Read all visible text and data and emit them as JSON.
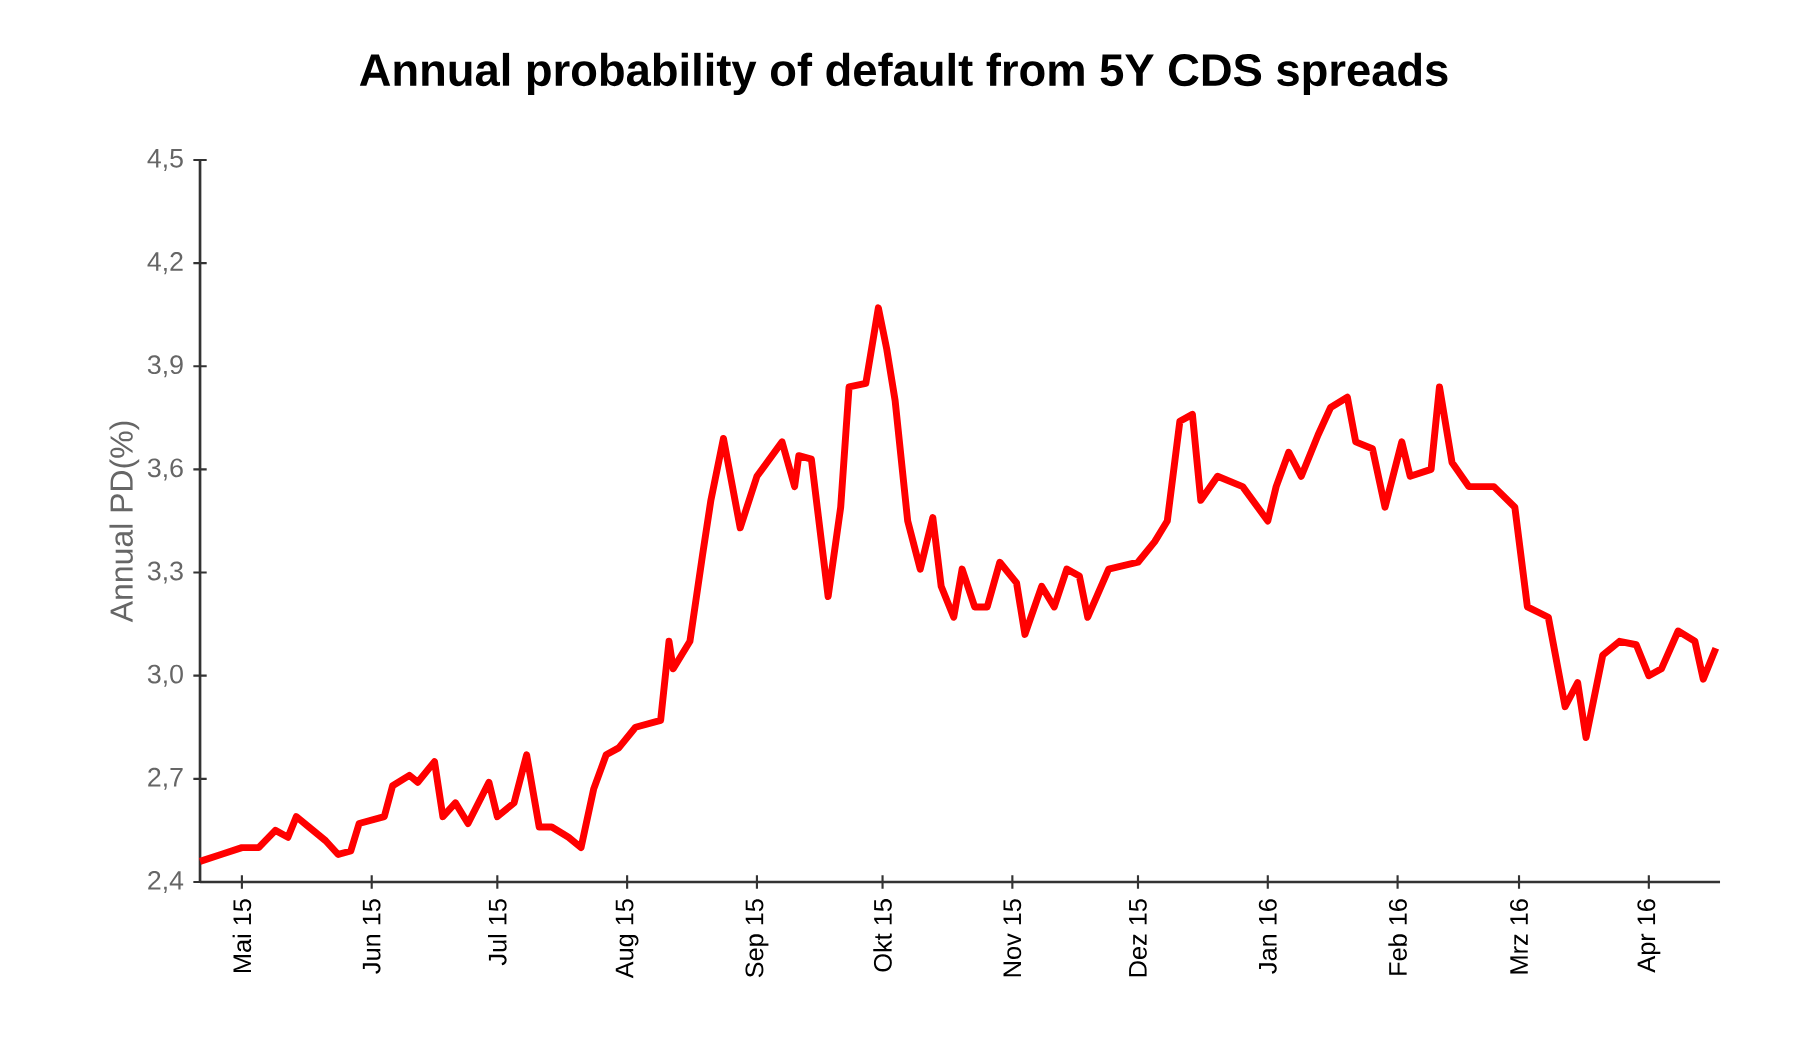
{
  "chart_data": {
    "type": "line",
    "title": "Annual probability of default from 5Y CDS spreads",
    "ylabel": "Annual PD(%)",
    "x": [
      "2015-04-21",
      "2015-04-26",
      "2015-05-01",
      "2015-05-05",
      "2015-05-09",
      "2015-05-12",
      "2015-05-14",
      "2015-05-17",
      "2015-05-21",
      "2015-05-24",
      "2015-05-27",
      "2015-05-29",
      "2015-06-04",
      "2015-06-06",
      "2015-06-10",
      "2015-06-12",
      "2015-06-16",
      "2015-06-18",
      "2015-06-21",
      "2015-06-24",
      "2015-06-29",
      "2015-07-01",
      "2015-07-05",
      "2015-07-08",
      "2015-07-11",
      "2015-07-14",
      "2015-07-18",
      "2015-07-21",
      "2015-07-24",
      "2015-07-27",
      "2015-07-30",
      "2015-08-03",
      "2015-08-09",
      "2015-08-11",
      "2015-08-12",
      "2015-08-16",
      "2015-08-19",
      "2015-08-21",
      "2015-08-24",
      "2015-08-26",
      "2015-08-28",
      "2015-09-01",
      "2015-09-07",
      "2015-09-10",
      "2015-09-11",
      "2015-09-14",
      "2015-09-18",
      "2015-09-21",
      "2015-09-23",
      "2015-09-27",
      "2015-09-30",
      "2015-10-02",
      "2015-10-04",
      "2015-10-07",
      "2015-10-10",
      "2015-10-13",
      "2015-10-15",
      "2015-10-18",
      "2015-10-20",
      "2015-10-23",
      "2015-10-26",
      "2015-10-29",
      "2015-11-02",
      "2015-11-04",
      "2015-11-08",
      "2015-11-11",
      "2015-11-14",
      "2015-11-17",
      "2015-11-19",
      "2015-11-24",
      "2015-12-01",
      "2015-12-05",
      "2015-12-08",
      "2015-12-11",
      "2015-12-14",
      "2015-12-16",
      "2015-12-20",
      "2015-12-26",
      "2016-01-01",
      "2016-01-03",
      "2016-01-06",
      "2016-01-09",
      "2016-01-13",
      "2016-01-16",
      "2016-01-20",
      "2016-01-22",
      "2016-01-26",
      "2016-01-29",
      "2016-02-02",
      "2016-02-04",
      "2016-02-09",
      "2016-02-11",
      "2016-02-14",
      "2016-02-18",
      "2016-02-24",
      "2016-02-29",
      "2016-03-03",
      "2016-03-08",
      "2016-03-12",
      "2016-03-15",
      "2016-03-17",
      "2016-03-21",
      "2016-03-25",
      "2016-03-29",
      "2016-04-01",
      "2016-04-04",
      "2016-04-08",
      "2016-04-12",
      "2016-04-14",
      "2016-04-17"
    ],
    "series": [
      {
        "color": "#ff0000",
        "values": [
          2.46,
          2.48,
          2.5,
          2.5,
          2.55,
          2.53,
          2.59,
          2.56,
          2.52,
          2.48,
          2.49,
          2.57,
          2.59,
          2.68,
          2.71,
          2.69,
          2.75,
          2.59,
          2.63,
          2.57,
          2.69,
          2.59,
          2.63,
          2.77,
          2.56,
          2.56,
          2.53,
          2.5,
          2.67,
          2.77,
          2.79,
          2.85,
          2.87,
          3.1,
          3.02,
          3.1,
          3.35,
          3.51,
          3.69,
          3.56,
          3.43,
          3.58,
          3.68,
          3.55,
          3.64,
          3.63,
          3.23,
          3.49,
          3.84,
          3.85,
          4.07,
          3.95,
          3.8,
          3.45,
          3.31,
          3.46,
          3.26,
          3.17,
          3.31,
          3.2,
          3.2,
          3.33,
          3.27,
          3.12,
          3.26,
          3.2,
          3.31,
          3.29,
          3.17,
          3.31,
          3.33,
          3.39,
          3.45,
          3.74,
          3.76,
          3.51,
          3.58,
          3.55,
          3.45,
          3.55,
          3.65,
          3.58,
          3.7,
          3.78,
          3.81,
          3.68,
          3.66,
          3.49,
          3.68,
          3.58,
          3.6,
          3.84,
          3.62,
          3.55,
          3.55,
          3.49,
          3.2,
          3.17,
          2.91,
          2.98,
          2.82,
          3.06,
          3.1,
          3.09,
          3.0,
          3.02,
          3.13,
          3.1,
          2.99,
          3.08
        ]
      }
    ],
    "xlim": [
      "2015-04-21",
      "2016-04-18"
    ],
    "xticks": [
      {
        "value": "2015-05-01",
        "label": "Mai 15"
      },
      {
        "value": "2015-06-01",
        "label": "Jun 15"
      },
      {
        "value": "2015-07-01",
        "label": "Jul 15"
      },
      {
        "value": "2015-08-01",
        "label": "Aug 15"
      },
      {
        "value": "2015-09-01",
        "label": "Sep 15"
      },
      {
        "value": "2015-10-01",
        "label": "Okt 15"
      },
      {
        "value": "2015-11-01",
        "label": "Nov 15"
      },
      {
        "value": "2015-12-01",
        "label": "Dez 15"
      },
      {
        "value": "2016-01-01",
        "label": "Jan 16"
      },
      {
        "value": "2016-02-01",
        "label": "Feb 16"
      },
      {
        "value": "2016-03-01",
        "label": "Mrz 16"
      },
      {
        "value": "2016-04-01",
        "label": "Apr 16"
      }
    ],
    "ylim": [
      2.4,
      4.5
    ],
    "yticks": [
      {
        "value": 2.4,
        "label": "2,4"
      },
      {
        "value": 2.7,
        "label": "2,7"
      },
      {
        "value": 3.0,
        "label": "3,0"
      },
      {
        "value": 3.3,
        "label": "3,3"
      },
      {
        "value": 3.6,
        "label": "3,6"
      },
      {
        "value": 3.9,
        "label": "3,9"
      },
      {
        "value": 4.2,
        "label": "4,2"
      },
      {
        "value": 4.5,
        "label": "4,5"
      }
    ]
  }
}
